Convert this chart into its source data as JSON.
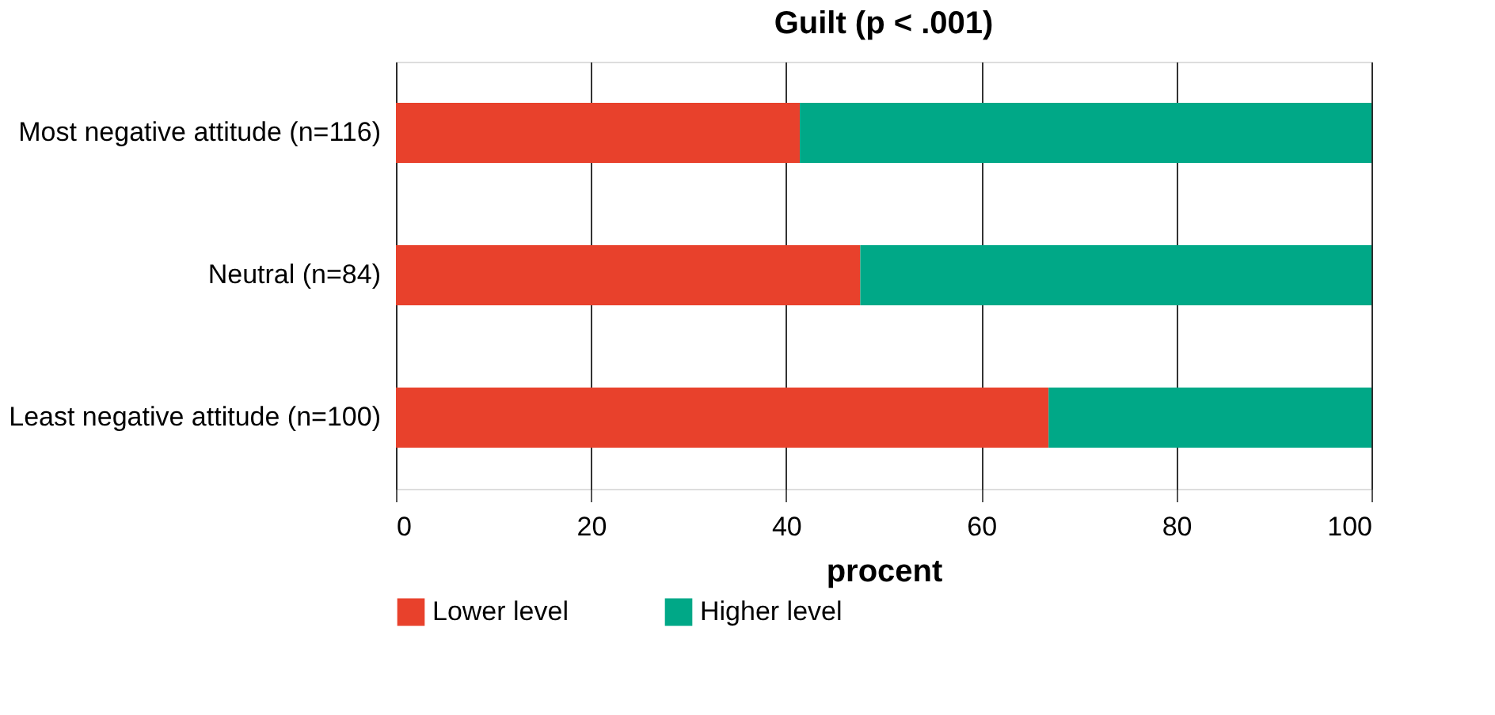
{
  "chart_data": {
    "type": "bar",
    "orientation": "horizontal",
    "stacked": true,
    "title": "Guilt (p < .001)",
    "xlabel": "procent",
    "categories": [
      "Most negative attitude (n=116)",
      "Neutral (n=84)",
      "Least negative attitude (n=100)"
    ],
    "series": [
      {
        "name": "Lower level",
        "color": "#e8412c",
        "values": [
          41.4,
          47.6,
          66.9
        ]
      },
      {
        "name": "Higher level",
        "color": "#00a887",
        "values": [
          58.6,
          52.4,
          33.1
        ]
      }
    ],
    "xlim": [
      0,
      100
    ],
    "xticks": [
      0,
      20,
      40,
      60,
      80,
      100
    ],
    "grid": "x",
    "legend": "bottom"
  }
}
